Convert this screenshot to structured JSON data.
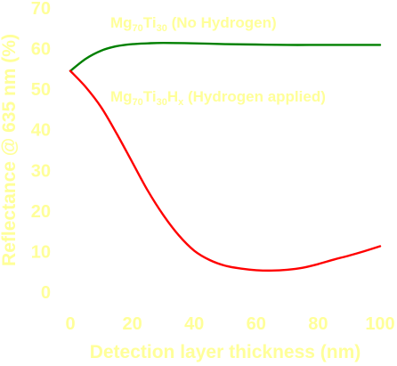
{
  "chart_data": {
    "type": "line",
    "xlabel": "Detection layer thickness (nm)",
    "ylabel": "Reflectance @ 635 nm (%)",
    "xlim": [
      0,
      100
    ],
    "ylim": [
      0,
      70
    ],
    "xticks": [
      "0",
      "20",
      "40",
      "60",
      "80",
      "100"
    ],
    "yticks": [
      "0",
      "10",
      "20",
      "30",
      "40",
      "50",
      "60",
      "70"
    ],
    "grid": false,
    "series": [
      {
        "label_parts": [
          {
            "text": "Mg",
            "sub": false
          },
          {
            "text": "70",
            "sub": true
          },
          {
            "text": "Ti",
            "sub": false
          },
          {
            "text": "30",
            "sub": true
          },
          {
            "text": "   (No Hydrogen)",
            "sub": false
          }
        ],
        "color": "#008000",
        "x": [
          0,
          5,
          10,
          15,
          20,
          25,
          30,
          40,
          50,
          60,
          70,
          80,
          90,
          100
        ],
        "y": [
          54.5,
          57.5,
          59.5,
          60.6,
          61.1,
          61.3,
          61.4,
          61.3,
          61.1,
          61.0,
          60.9,
          60.9,
          60.9,
          60.9
        ]
      },
      {
        "label_parts": [
          {
            "text": "Mg",
            "sub": false
          },
          {
            "text": "70",
            "sub": true
          },
          {
            "text": "Ti",
            "sub": false
          },
          {
            "text": "30",
            "sub": true
          },
          {
            "text": "H",
            "sub": false
          },
          {
            "text": "x",
            "sub": true
          },
          {
            "text": "   (Hydrogen applied)",
            "sub": false
          }
        ],
        "color": "#ff0000",
        "x": [
          0,
          5,
          10,
          15,
          20,
          25,
          30,
          35,
          40,
          45,
          50,
          55,
          60,
          65,
          70,
          75,
          80,
          85,
          90,
          95,
          100
        ],
        "y": [
          54.5,
          50.5,
          45.5,
          39.0,
          32.0,
          25.0,
          19.0,
          14.0,
          10.2,
          7.9,
          6.5,
          5.8,
          5.4,
          5.3,
          5.5,
          6.0,
          6.9,
          8.0,
          9.0,
          10.1,
          11.3
        ]
      }
    ]
  }
}
